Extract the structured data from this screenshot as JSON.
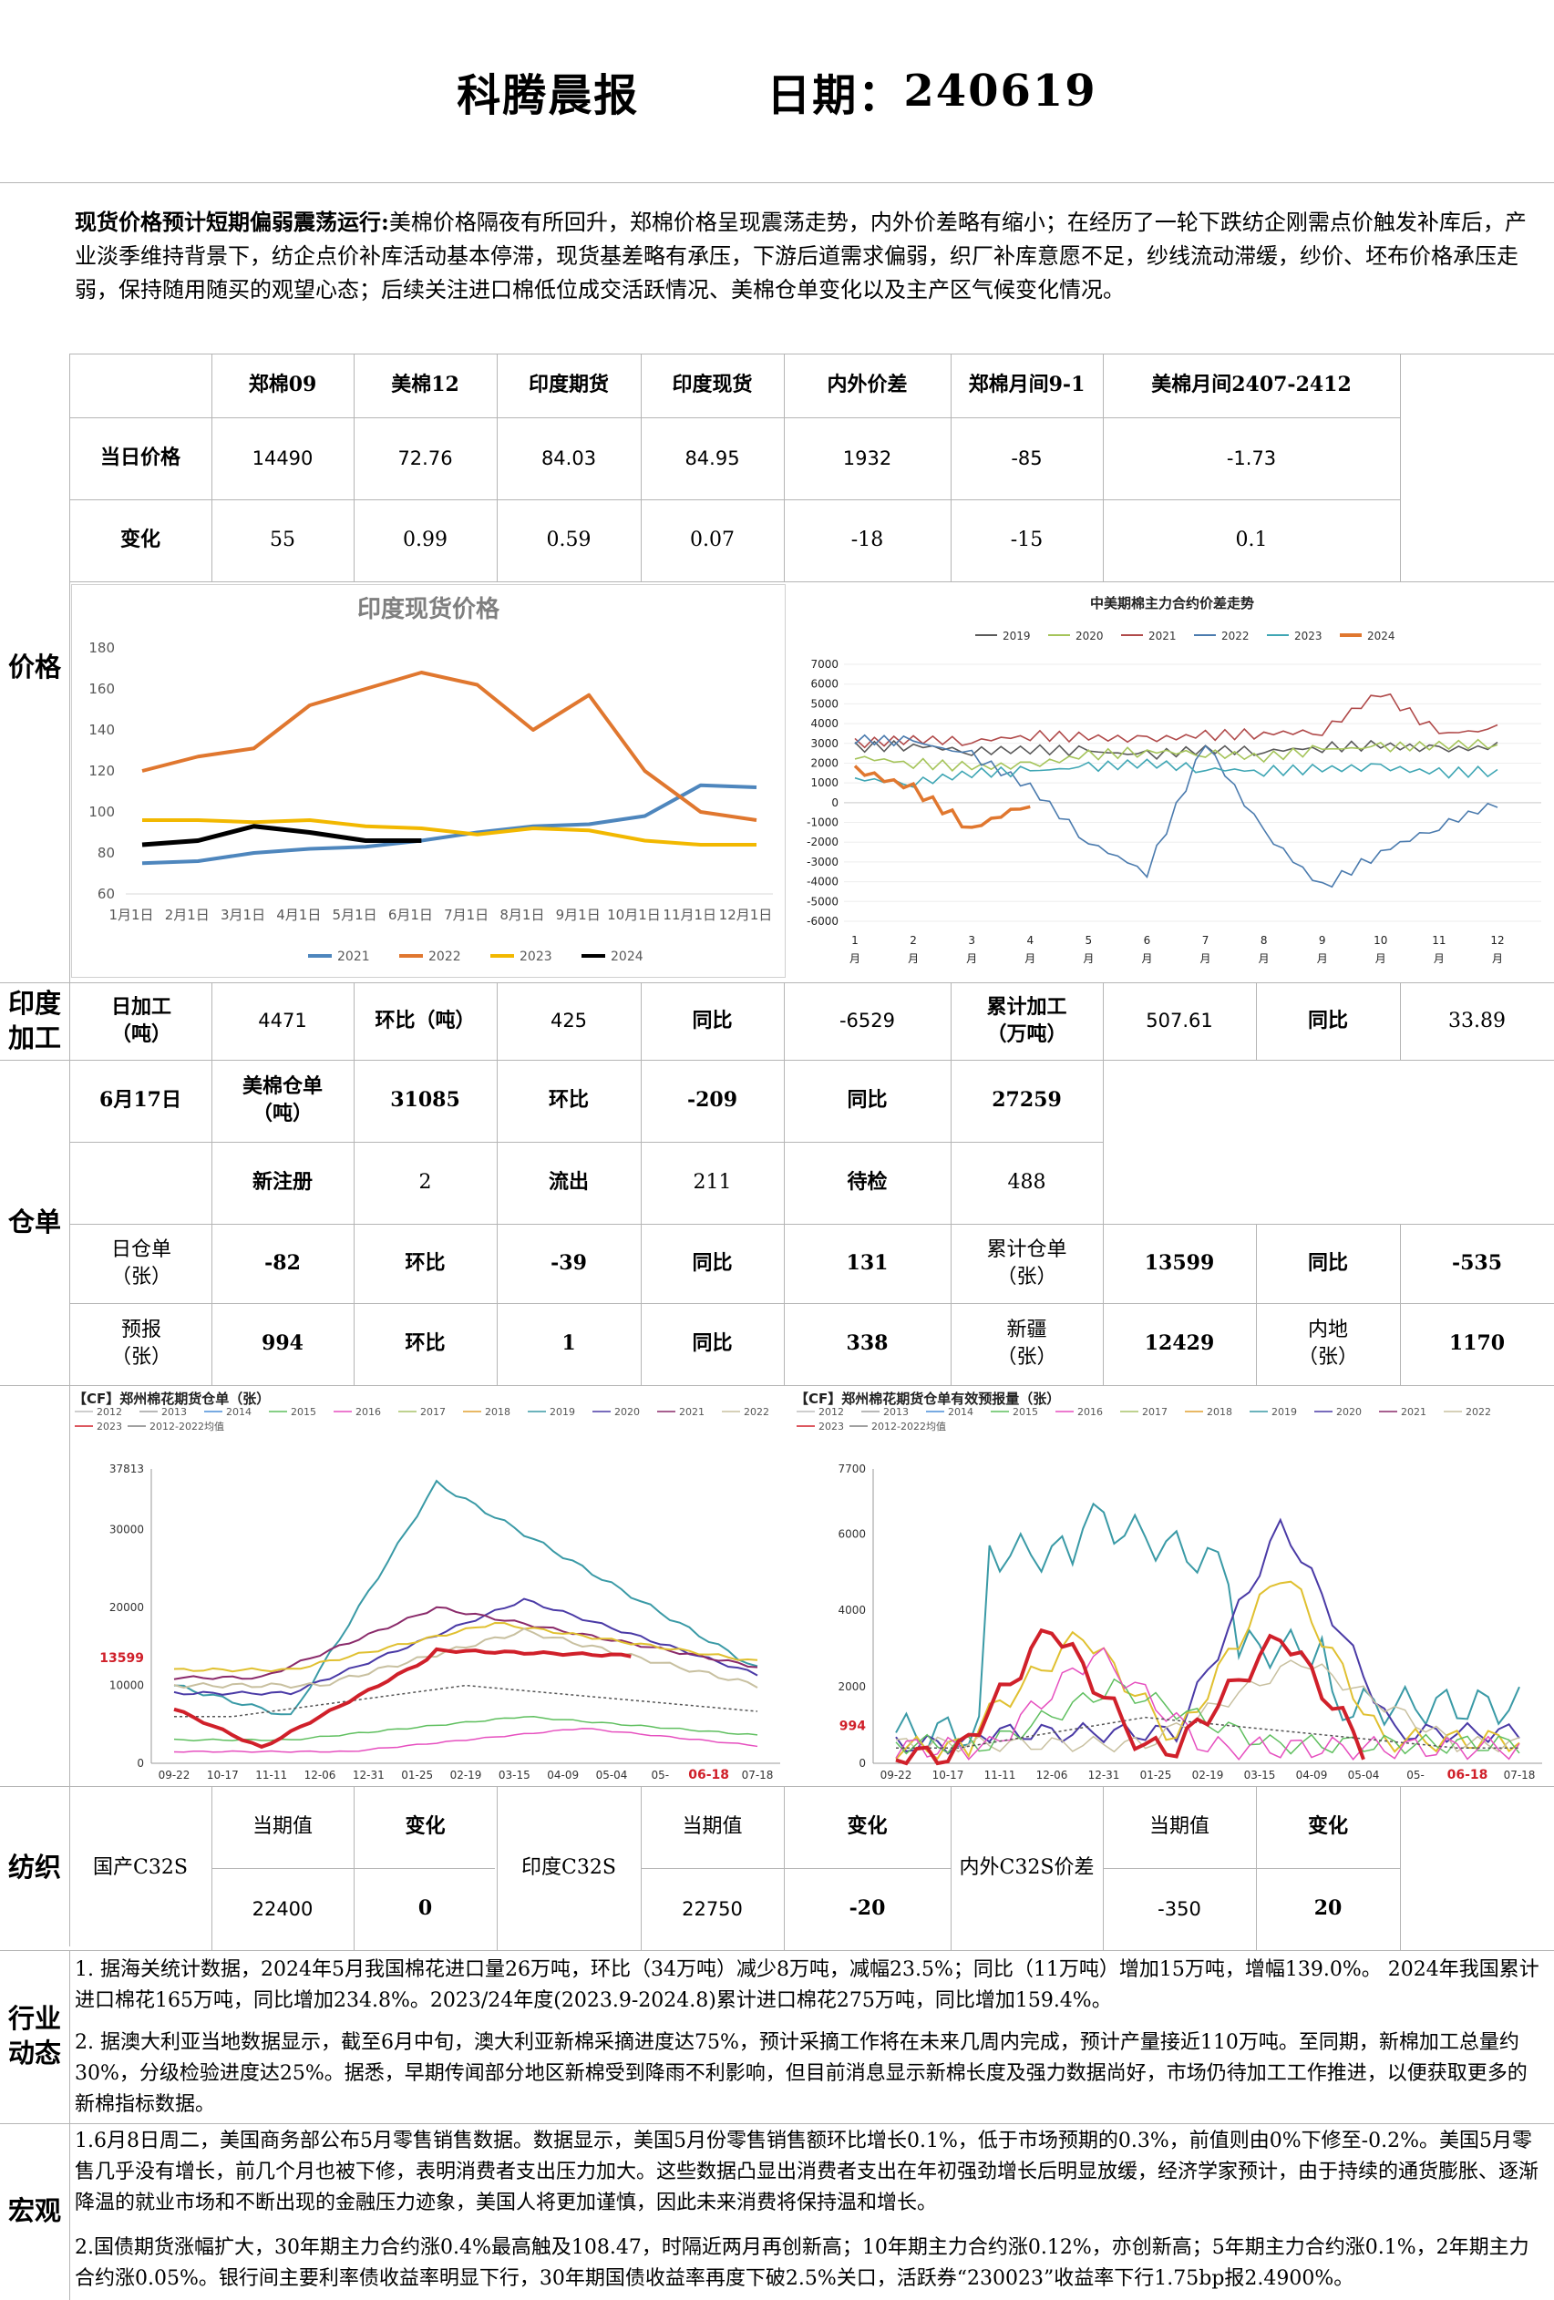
{
  "header": {
    "title": "科腾晨报",
    "date_label": "日期：",
    "date": "240619"
  },
  "summary": {
    "lead": "现货价格预计短期偏弱震荡运行:",
    "body": "美棉价格隔夜有所回升，郑棉价格呈现震荡走势，内外价差略有缩小；在经历了一轮下跌纺企刚需点价触发补库后，产业淡季维持背景下，纺企点价补库活动基本停滞，现货基差略有承压，下游后道需求偏弱，织厂补库意愿不足，纱线流动滞缓，纱价、坯布价格承压走弱，保持随用随买的观望心态；后续关注进口棉低位成交活跃情况、美棉仓单变化以及主产区气候变化情况。"
  },
  "price": {
    "section": "价格",
    "headers": [
      "郑棉09",
      "美棉12",
      "印度期货",
      "印度现货",
      "内外价差",
      "郑棉月间9-1",
      "美棉月间2407-2412"
    ],
    "rows": [
      {
        "label": "当日价格",
        "values": [
          "14490",
          "72.76",
          "84.03",
          "84.95",
          "1932",
          "-85",
          "-1.73"
        ]
      },
      {
        "label": "变化",
        "values": [
          "55",
          "0.99",
          "0.59",
          "0.07",
          "-18",
          "-15",
          "0.1"
        ]
      }
    ]
  },
  "chart_data": [
    {
      "type": "line",
      "title": "印度现货价格",
      "xlabel": "",
      "ylabel": "",
      "ylim": [
        60,
        180
      ],
      "categories": [
        "1月1日",
        "2月1日",
        "3月1日",
        "4月1日",
        "5月1日",
        "6月1日",
        "7月1日",
        "8月1日",
        "9月1日",
        "10月1日",
        "11月1日",
        "12月1日"
      ],
      "yticks": [
        "60",
        "80",
        "100",
        "120",
        "140",
        "160",
        "180"
      ],
      "series": [
        {
          "name": "2021",
          "color": "#4e86bd",
          "values": [
            75,
            76,
            80,
            82,
            83,
            86,
            90,
            93,
            94,
            98,
            113,
            112
          ]
        },
        {
          "name": "2022",
          "color": "#e0772f",
          "values": [
            120,
            127,
            131,
            152,
            160,
            168,
            162,
            140,
            157,
            120,
            100,
            96
          ]
        },
        {
          "name": "2023",
          "color": "#f2b800",
          "values": [
            96,
            96,
            95,
            96,
            93,
            92,
            89,
            92,
            91,
            86,
            84,
            84
          ]
        },
        {
          "name": "2024",
          "color": "#000000",
          "values": [
            84,
            86,
            93,
            90,
            86,
            86,
            null,
            null,
            null,
            null,
            null,
            null
          ]
        }
      ]
    },
    {
      "type": "line",
      "title": "中美期棉主力合约价差走势",
      "ylim": [
        -6000,
        7000
      ],
      "categories": [
        "1 月",
        "2 月",
        "3 月",
        "4 月",
        "5 月",
        "6 月",
        "7 月",
        "8 月",
        "9 月",
        "10 月",
        "11 月",
        "12 月"
      ],
      "yticks": [
        "7000",
        "6000",
        "5000",
        "4000",
        "3000",
        "2000",
        "1000",
        "0",
        "-1000",
        "-2000",
        "-3000",
        "-4000",
        "-5000",
        "-6000"
      ],
      "series": [
        {
          "name": "2019",
          "color": "#5a5a5a",
          "values": [
            2800,
            2900,
            2600,
            2700,
            2600,
            2400,
            2700,
            2600,
            2800,
            2900,
            2700,
            2800
          ]
        },
        {
          "name": "2020",
          "color": "#a5c45a",
          "values": [
            2300,
            2000,
            1800,
            1900,
            2400,
            2600,
            2500,
            2300,
            2700,
            2800,
            2900,
            3000
          ]
        },
        {
          "name": "2021",
          "color": "#b04a4a",
          "values": [
            3000,
            3200,
            3100,
            3400,
            3300,
            3200,
            3400,
            3500,
            3600,
            5600,
            3500,
            3700
          ]
        },
        {
          "name": "2022",
          "color": "#4b7bae",
          "values": [
            3200,
            3100,
            2400,
            800,
            -2000,
            -3500,
            3000,
            -1500,
            -4300,
            -2500,
            -1200,
            0
          ]
        },
        {
          "name": "2023",
          "color": "#3fa6b4",
          "values": [
            1200,
            1000,
            1500,
            1600,
            1800,
            2000,
            1700,
            1600,
            1700,
            1800,
            1500,
            1600
          ]
        },
        {
          "name": "2024",
          "color": "#e0772f",
          "values": [
            1700,
            700,
            -1300,
            0,
            null,
            null,
            null,
            null,
            null,
            null,
            null,
            null
          ]
        }
      ]
    },
    {
      "type": "line",
      "title": "【CF】郑州棉花期货仓单（张）",
      "yticks": [
        "37813",
        "30000",
        "20000",
        "10000",
        "0"
      ],
      "categories": [
        "09-22",
        "10-17",
        "11-11",
        "12-06",
        "12-31",
        "01-25",
        "02-19",
        "03-15",
        "04-09",
        "05-04",
        "05-",
        "06-18",
        "07-18"
      ],
      "marker_label": "13599",
      "marker_date": "06-18",
      "legend": [
        "2012",
        "2013",
        "2014",
        "2015",
        "2016",
        "2017",
        "2018",
        "2019",
        "2020",
        "2021",
        "2022",
        "2023",
        "2012-2022均值"
      ]
    },
    {
      "type": "line",
      "title": "【CF】郑州棉花期货仓单有效预报量（张）",
      "yticks": [
        "7700",
        "6000",
        "4000",
        "2000",
        "0"
      ],
      "categories": [
        "09-22",
        "10-17",
        "11-11",
        "12-06",
        "12-31",
        "01-25",
        "02-19",
        "03-15",
        "04-09",
        "05-04",
        "05-",
        "06-18",
        "07-18"
      ],
      "marker_label": "994",
      "marker_date": "06-18",
      "legend": [
        "2012",
        "2013",
        "2014",
        "2015",
        "2016",
        "2017",
        "2018",
        "2019",
        "2020",
        "2021",
        "2022",
        "2023",
        "2012-2022均值"
      ]
    }
  ],
  "india": {
    "section": "印度加工",
    "c1": "日加工（吨）",
    "v1": "4471",
    "c2": "环比（吨）",
    "v2": "425",
    "c3": "同比",
    "v3": "-6529",
    "c4": "累计加工（万吨）",
    "v4": "507.61",
    "c5": "同比",
    "v5": "33.89"
  },
  "warehouse": {
    "section": "仓单",
    "r1": {
      "date": "6月17日",
      "a": "美棉仓单（吨）",
      "av": "31085",
      "b": "环比",
      "bv": "-209",
      "c": "同比",
      "cv": "27259"
    },
    "r2": {
      "a": "新注册",
      "av": "2",
      "b": "流出",
      "bv": "211",
      "c": "待检",
      "cv": "488"
    },
    "r3": {
      "a": "日仓单（张）",
      "av": "-82",
      "b": "环比",
      "bv": "-39",
      "c": "同比",
      "cv": "131",
      "d": "累计仓单（张）",
      "dv": "13599",
      "e": "同比",
      "ev": "-535"
    },
    "r4": {
      "a": "预报（张）",
      "av": "994",
      "b": "环比",
      "bv": "1",
      "c": "同比",
      "cv": "338",
      "d": "新疆（张）",
      "dv": "12429",
      "e": "内地（张）",
      "ev": "1170"
    }
  },
  "textile": {
    "section": "纺织",
    "g1": "国产C32S",
    "g2": "印度C32S",
    "g3": "内外C32S价差",
    "h_cur": "当期值",
    "h_chg": "变化",
    "v1": "22400",
    "c1": "0",
    "v2": "22750",
    "c2": "-20",
    "v3": "-350",
    "c3": "20"
  },
  "industry": {
    "section": "行业动态",
    "p1": "1. 据海关统计数据，2024年5月我国棉花进口量26万吨，环比（34万吨）减少8万吨，减幅23.5%；同比（11万吨）增加15万吨，增幅139.0%。 2024年我国累计进口棉花165万吨，同比增加234.8%。2023/24年度(2023.9-2024.8)累计进口棉花275万吨，同比增加159.4%。",
    "p2": "2. 据澳大利亚当地数据显示，截至6月中旬，澳大利亚新棉采摘进度达75%，预计采摘工作将在未来几周内完成，预计产量接近110万吨。至同期，新棉加工总量约30%，分级检验进度达25%。据悉，早期传闻部分地区新棉受到降雨不利影响，但目前消息显示新棉长度及强力数据尚好，市场仍待加工工作推进，以便获取更多的新棉指标数据。"
  },
  "macro": {
    "section": "宏观",
    "p1": "1.6月8日周二，美国商务部公布5月零售销售数据。数据显示，美国5月份零售销售额环比增长0.1%，低于市场预期的0.3%，前值则由0%下修至-0.2%。美国5月零售几乎没有增长，前几个月也被下修，表明消费者支出压力加大。这些数据凸显出消费者支出在年初强劲增长后明显放缓，经济学家预计，由于持续的通货膨胀、逐渐降温的就业市场和不断出现的金融压力迹象，美国人将更加谨慎，因此未来消费将保持温和增长。",
    "p2": "2.国债期货涨幅扩大，30年期主力合约涨0.4%最高触及108.47，时隔近两月再创新高；10年期主力合约涨0.12%，亦创新高；5年期主力合约涨0.1%，2年期主力合约涨0.05%。银行间主要利率债收益率明显下行，30年期国债收益率再度下破2.5%关口，活跃券“230023”收益率下行1.75bp报2.4900%。"
  }
}
